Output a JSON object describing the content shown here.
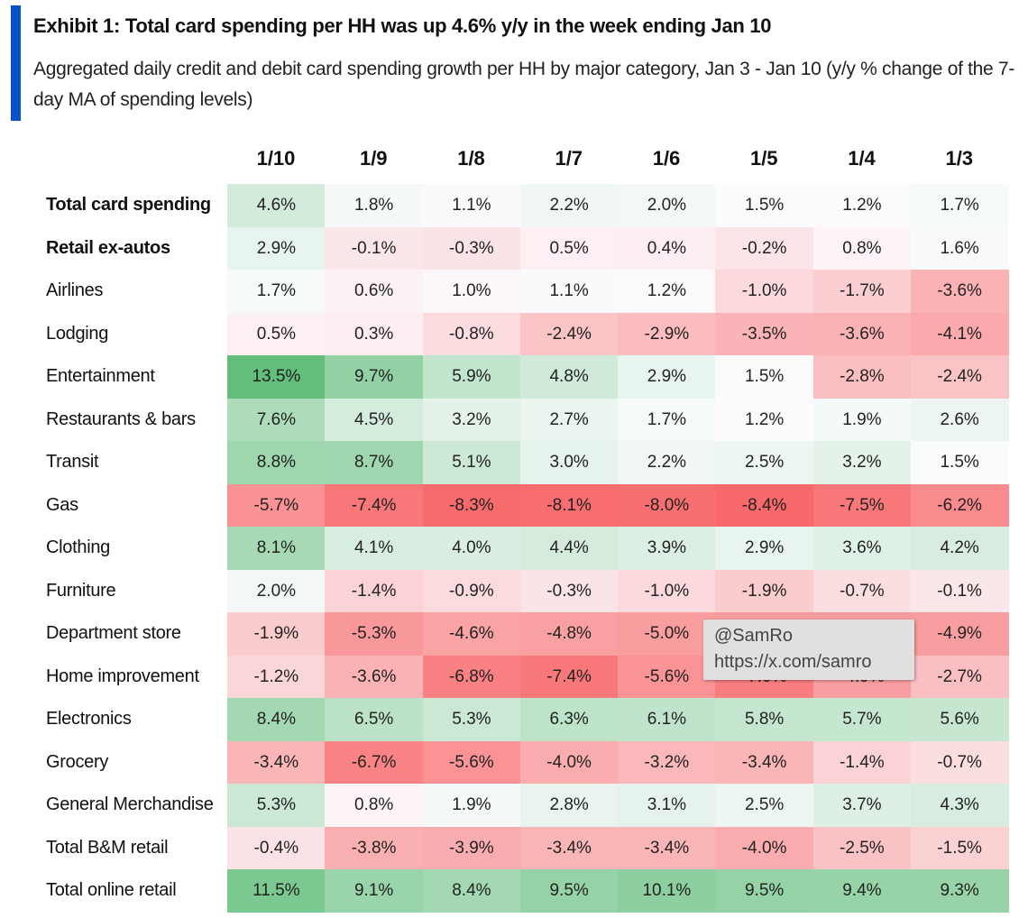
{
  "header": {
    "title": "Exhibit 1: Total card spending per HH was up 4.6% y/y in the week ending Jan 10",
    "subtitle": "Aggregated daily credit and debit card spending growth per HH by major category, Jan 3 - Jan 10 (y/y % change of the 7-day MA of spending levels)"
  },
  "watermark": {
    "handle": "@SamRo",
    "url": "https://x.com/samro"
  },
  "chart_data": {
    "type": "heatmap",
    "title": "Exhibit 1: Total card spending per HH was up 4.6% y/y in the week ending Jan 10",
    "columns": [
      "1/10",
      "1/9",
      "1/8",
      "1/7",
      "1/6",
      "1/5",
      "1/4",
      "1/3"
    ],
    "rows": [
      {
        "label": "Total card spending",
        "bold": true,
        "values": [
          4.6,
          1.8,
          1.1,
          2.2,
          2.0,
          1.5,
          1.2,
          1.7
        ]
      },
      {
        "label": "Retail ex-autos",
        "bold": true,
        "values": [
          2.9,
          -0.1,
          -0.3,
          0.5,
          0.4,
          -0.2,
          0.8,
          1.6
        ]
      },
      {
        "label": "Airlines",
        "values": [
          1.7,
          0.6,
          1.0,
          1.1,
          1.2,
          -1.0,
          -1.7,
          -3.6
        ]
      },
      {
        "label": "Lodging",
        "values": [
          0.5,
          0.3,
          -0.8,
          -2.4,
          -2.9,
          -3.5,
          -3.6,
          -4.1
        ]
      },
      {
        "label": "Entertainment",
        "values": [
          13.5,
          9.7,
          5.9,
          4.8,
          2.9,
          1.5,
          -2.8,
          -2.4
        ]
      },
      {
        "label": "Restaurants & bars",
        "values": [
          7.6,
          4.5,
          3.2,
          2.7,
          1.7,
          1.2,
          1.9,
          2.6
        ]
      },
      {
        "label": "Transit",
        "values": [
          8.8,
          8.7,
          5.1,
          3.0,
          2.2,
          2.5,
          3.2,
          1.5
        ]
      },
      {
        "label": "Gas",
        "values": [
          -5.7,
          -7.4,
          -8.3,
          -8.1,
          -8.0,
          -8.4,
          -7.5,
          -6.2
        ]
      },
      {
        "label": "Clothing",
        "values": [
          8.1,
          4.1,
          4.0,
          4.4,
          3.9,
          2.9,
          3.6,
          4.2
        ]
      },
      {
        "label": "Furniture",
        "values": [
          2.0,
          -1.4,
          -0.9,
          -0.3,
          -1.0,
          -1.9,
          -0.7,
          -0.1
        ]
      },
      {
        "label": "Department store",
        "values": [
          -1.9,
          -5.3,
          -4.6,
          -4.8,
          -5.0,
          null,
          null,
          -4.9
        ]
      },
      {
        "label": "Home improvement",
        "values": [
          -1.2,
          -3.6,
          -6.8,
          -7.4,
          -5.6,
          -7.0,
          -4.9,
          -2.7
        ]
      },
      {
        "label": "Electronics",
        "values": [
          8.4,
          6.5,
          5.3,
          6.3,
          6.1,
          5.8,
          5.7,
          5.6
        ]
      },
      {
        "label": "Grocery",
        "values": [
          -3.4,
          -6.7,
          -5.6,
          -4.0,
          -3.2,
          -3.4,
          -1.4,
          -0.7
        ]
      },
      {
        "label": "General Merchandise",
        "values": [
          5.3,
          0.8,
          1.9,
          2.8,
          3.1,
          2.5,
          3.7,
          4.3
        ]
      },
      {
        "label": "Total B&M retail",
        "values": [
          -0.4,
          -3.8,
          -3.9,
          -3.4,
          -3.4,
          -4.0,
          -2.5,
          -1.5
        ]
      },
      {
        "label": "Total online retail",
        "values": [
          11.5,
          9.1,
          8.4,
          9.5,
          10.1,
          9.5,
          9.4,
          9.3
        ]
      }
    ],
    "unit": "%",
    "color_scale": {
      "min_color": "#f8696b",
      "mid_color": "#fcfcff",
      "max_color": "#63be7b",
      "min": -8.4,
      "mid": 1.3,
      "max": 13.5
    }
  }
}
